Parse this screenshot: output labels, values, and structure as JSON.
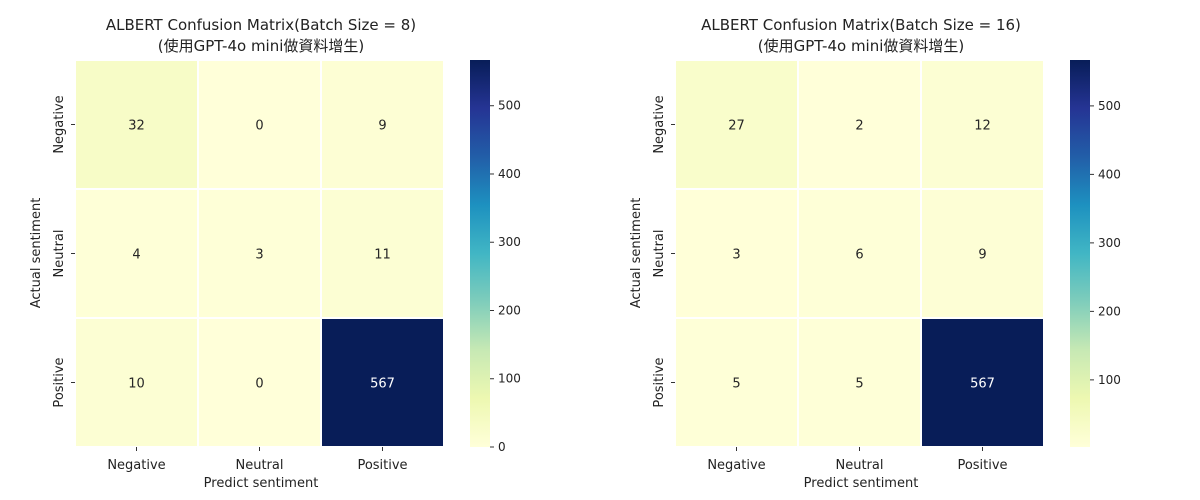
{
  "chart_data": [
    {
      "type": "heatmap",
      "title": "ALBERT Confusion Matrix(Batch Size = 8)",
      "subtitle": "(使用GPT-4o mini做資料增生)",
      "xlabel": "Predict sentiment",
      "ylabel": "Actual sentiment",
      "x_categories": [
        "Negative",
        "Neutral",
        "Positive"
      ],
      "y_categories": [
        "Negative",
        "Neutral",
        "Positive"
      ],
      "values": [
        [
          32,
          0,
          9
        ],
        [
          4,
          3,
          11
        ],
        [
          10,
          0,
          567
        ]
      ],
      "colormap": "YlGnBu",
      "colorbar": {
        "range": [
          0,
          567
        ],
        "ticks": [
          0,
          100,
          200,
          300,
          400,
          500
        ]
      }
    },
    {
      "type": "heatmap",
      "title": "ALBERT Confusion Matrix(Batch Size = 16)",
      "subtitle": "(使用GPT-4o mini做資料增生)",
      "xlabel": "Predict sentiment",
      "ylabel": "Actual sentiment",
      "x_categories": [
        "Negative",
        "Neutral",
        "Positive"
      ],
      "y_categories": [
        "Negative",
        "Neutral",
        "Positive"
      ],
      "values": [
        [
          27,
          2,
          12
        ],
        [
          3,
          6,
          9
        ],
        [
          5,
          5,
          567
        ]
      ],
      "colormap": "YlGnBu",
      "colorbar": {
        "range": [
          2,
          567
        ],
        "ticks": [
          100,
          200,
          300,
          400,
          500
        ]
      }
    }
  ]
}
